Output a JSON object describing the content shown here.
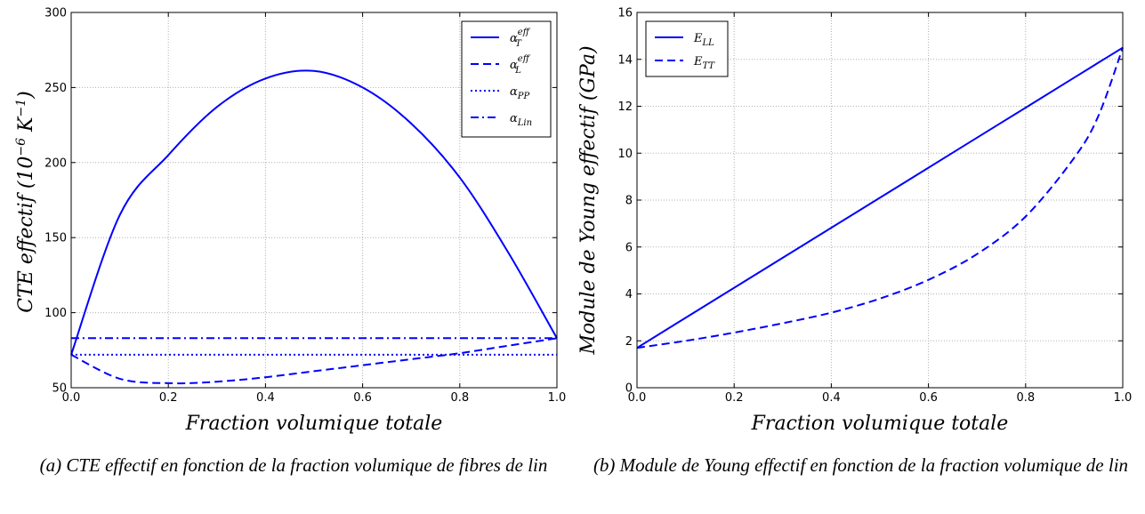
{
  "chart_data": [
    {
      "type": "line",
      "xlabel": "Fraction volumique totale",
      "ylabel": "CTE effectif (10⁻⁶ K⁻¹)",
      "xlim": [
        0,
        1
      ],
      "ylim": [
        50,
        300
      ],
      "xticks": [
        "0.0",
        "0.2",
        "0.4",
        "0.6",
        "0.8",
        "1.0"
      ],
      "yticks": [
        "50",
        "100",
        "150",
        "200",
        "250",
        "300"
      ],
      "grid": true,
      "legend": "top-right",
      "x": [
        0.0,
        0.1,
        0.2,
        0.3,
        0.4,
        0.5,
        0.6,
        0.7,
        0.8,
        0.9,
        1.0
      ],
      "series": [
        {
          "name": "α_T^eff",
          "base": "α",
          "sub": "T",
          "sup": "eff",
          "style": "solid",
          "values": [
            72,
            165,
            205,
            237,
            256,
            261,
            250,
            226,
            190,
            140,
            83
          ]
        },
        {
          "name": "α_L^eff",
          "base": "α",
          "sub": "L",
          "sup": "eff",
          "style": "dashed",
          "values": [
            72,
            56,
            53,
            54,
            57,
            61,
            65,
            69,
            73,
            78,
            83
          ]
        },
        {
          "name": "α_PP",
          "base": "α",
          "sub": "PP",
          "sup": "",
          "style": "dotted",
          "values": [
            72,
            72,
            72,
            72,
            72,
            72,
            72,
            72,
            72,
            72,
            72
          ]
        },
        {
          "name": "α_Lin",
          "base": "α",
          "sub": "Lin",
          "sup": "",
          "style": "dashdot",
          "values": [
            83,
            83,
            83,
            83,
            83,
            83,
            83,
            83,
            83,
            83,
            83
          ]
        }
      ],
      "color": "#0000ff"
    },
    {
      "type": "line",
      "xlabel": "Fraction volumique totale",
      "ylabel": "Module de Young effectif (GPa)",
      "xlim": [
        0,
        1
      ],
      "ylim": [
        0,
        16
      ],
      "xticks": [
        "0.0",
        "0.2",
        "0.4",
        "0.6",
        "0.8",
        "1.0"
      ],
      "yticks": [
        "0",
        "2",
        "4",
        "6",
        "8",
        "10",
        "12",
        "14",
        "16"
      ],
      "grid": true,
      "legend": "top-left",
      "x": [
        0.0,
        0.1,
        0.2,
        0.3,
        0.4,
        0.5,
        0.6,
        0.7,
        0.8,
        0.9,
        0.95,
        1.0
      ],
      "series": [
        {
          "name": "E_LL",
          "base": "E",
          "sub": "LL",
          "sup": "",
          "style": "solid",
          "values": [
            1.7,
            2.98,
            4.26,
            5.54,
            6.82,
            8.1,
            9.38,
            10.66,
            11.94,
            13.22,
            13.86,
            14.5
          ]
        },
        {
          "name": "E_TT",
          "base": "E",
          "sub": "TT",
          "sup": "",
          "style": "dashed",
          "values": [
            1.7,
            2.0,
            2.35,
            2.75,
            3.2,
            3.8,
            4.6,
            5.7,
            7.3,
            9.8,
            11.6,
            14.5
          ]
        }
      ],
      "color": "#0000ff"
    }
  ],
  "captions": {
    "a": "(a) CTE effectif en fonction de la fraction volumique de fibres de lin",
    "b": "(b) Module de Young effectif en fonction de la fraction volumique de lin"
  }
}
